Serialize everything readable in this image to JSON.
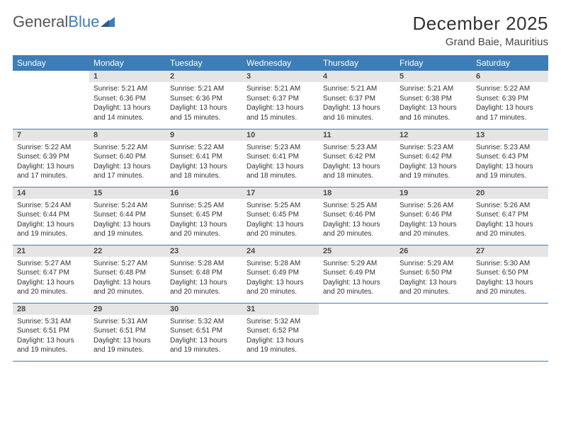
{
  "logo": {
    "word1": "General",
    "word2": "Blue",
    "tri_color": "#3d7db8"
  },
  "title": "December 2025",
  "subtitle": "Grand Baie, Mauritius",
  "weekday_labels": [
    "Sunday",
    "Monday",
    "Tuesday",
    "Wednesday",
    "Thursday",
    "Friday",
    "Saturday"
  ],
  "colors": {
    "header_bg": "#3d7db8",
    "daynum_bg": "#e5e5e5",
    "row_border": "#3d7db8",
    "text": "#333333"
  },
  "fontsizes": {
    "title": 26,
    "subtitle": 15,
    "weekday": 12,
    "daynum": 11,
    "body": 10
  },
  "weeks": [
    [
      null,
      {
        "n": "1",
        "sr": "5:21 AM",
        "ss": "6:36 PM",
        "dl": "13 hours and 14 minutes."
      },
      {
        "n": "2",
        "sr": "5:21 AM",
        "ss": "6:36 PM",
        "dl": "13 hours and 15 minutes."
      },
      {
        "n": "3",
        "sr": "5:21 AM",
        "ss": "6:37 PM",
        "dl": "13 hours and 15 minutes."
      },
      {
        "n": "4",
        "sr": "5:21 AM",
        "ss": "6:37 PM",
        "dl": "13 hours and 16 minutes."
      },
      {
        "n": "5",
        "sr": "5:21 AM",
        "ss": "6:38 PM",
        "dl": "13 hours and 16 minutes."
      },
      {
        "n": "6",
        "sr": "5:22 AM",
        "ss": "6:39 PM",
        "dl": "13 hours and 17 minutes."
      }
    ],
    [
      {
        "n": "7",
        "sr": "5:22 AM",
        "ss": "6:39 PM",
        "dl": "13 hours and 17 minutes."
      },
      {
        "n": "8",
        "sr": "5:22 AM",
        "ss": "6:40 PM",
        "dl": "13 hours and 17 minutes."
      },
      {
        "n": "9",
        "sr": "5:22 AM",
        "ss": "6:41 PM",
        "dl": "13 hours and 18 minutes."
      },
      {
        "n": "10",
        "sr": "5:23 AM",
        "ss": "6:41 PM",
        "dl": "13 hours and 18 minutes."
      },
      {
        "n": "11",
        "sr": "5:23 AM",
        "ss": "6:42 PM",
        "dl": "13 hours and 18 minutes."
      },
      {
        "n": "12",
        "sr": "5:23 AM",
        "ss": "6:42 PM",
        "dl": "13 hours and 19 minutes."
      },
      {
        "n": "13",
        "sr": "5:23 AM",
        "ss": "6:43 PM",
        "dl": "13 hours and 19 minutes."
      }
    ],
    [
      {
        "n": "14",
        "sr": "5:24 AM",
        "ss": "6:44 PM",
        "dl": "13 hours and 19 minutes."
      },
      {
        "n": "15",
        "sr": "5:24 AM",
        "ss": "6:44 PM",
        "dl": "13 hours and 19 minutes."
      },
      {
        "n": "16",
        "sr": "5:25 AM",
        "ss": "6:45 PM",
        "dl": "13 hours and 20 minutes."
      },
      {
        "n": "17",
        "sr": "5:25 AM",
        "ss": "6:45 PM",
        "dl": "13 hours and 20 minutes."
      },
      {
        "n": "18",
        "sr": "5:25 AM",
        "ss": "6:46 PM",
        "dl": "13 hours and 20 minutes."
      },
      {
        "n": "19",
        "sr": "5:26 AM",
        "ss": "6:46 PM",
        "dl": "13 hours and 20 minutes."
      },
      {
        "n": "20",
        "sr": "5:26 AM",
        "ss": "6:47 PM",
        "dl": "13 hours and 20 minutes."
      }
    ],
    [
      {
        "n": "21",
        "sr": "5:27 AM",
        "ss": "6:47 PM",
        "dl": "13 hours and 20 minutes."
      },
      {
        "n": "22",
        "sr": "5:27 AM",
        "ss": "6:48 PM",
        "dl": "13 hours and 20 minutes."
      },
      {
        "n": "23",
        "sr": "5:28 AM",
        "ss": "6:48 PM",
        "dl": "13 hours and 20 minutes."
      },
      {
        "n": "24",
        "sr": "5:28 AM",
        "ss": "6:49 PM",
        "dl": "13 hours and 20 minutes."
      },
      {
        "n": "25",
        "sr": "5:29 AM",
        "ss": "6:49 PM",
        "dl": "13 hours and 20 minutes."
      },
      {
        "n": "26",
        "sr": "5:29 AM",
        "ss": "6:50 PM",
        "dl": "13 hours and 20 minutes."
      },
      {
        "n": "27",
        "sr": "5:30 AM",
        "ss": "6:50 PM",
        "dl": "13 hours and 20 minutes."
      }
    ],
    [
      {
        "n": "28",
        "sr": "5:31 AM",
        "ss": "6:51 PM",
        "dl": "13 hours and 19 minutes."
      },
      {
        "n": "29",
        "sr": "5:31 AM",
        "ss": "6:51 PM",
        "dl": "13 hours and 19 minutes."
      },
      {
        "n": "30",
        "sr": "5:32 AM",
        "ss": "6:51 PM",
        "dl": "13 hours and 19 minutes."
      },
      {
        "n": "31",
        "sr": "5:32 AM",
        "ss": "6:52 PM",
        "dl": "13 hours and 19 minutes."
      },
      null,
      null,
      null
    ]
  ],
  "labels": {
    "sunrise": "Sunrise:",
    "sunset": "Sunset:",
    "daylight": "Daylight:"
  }
}
